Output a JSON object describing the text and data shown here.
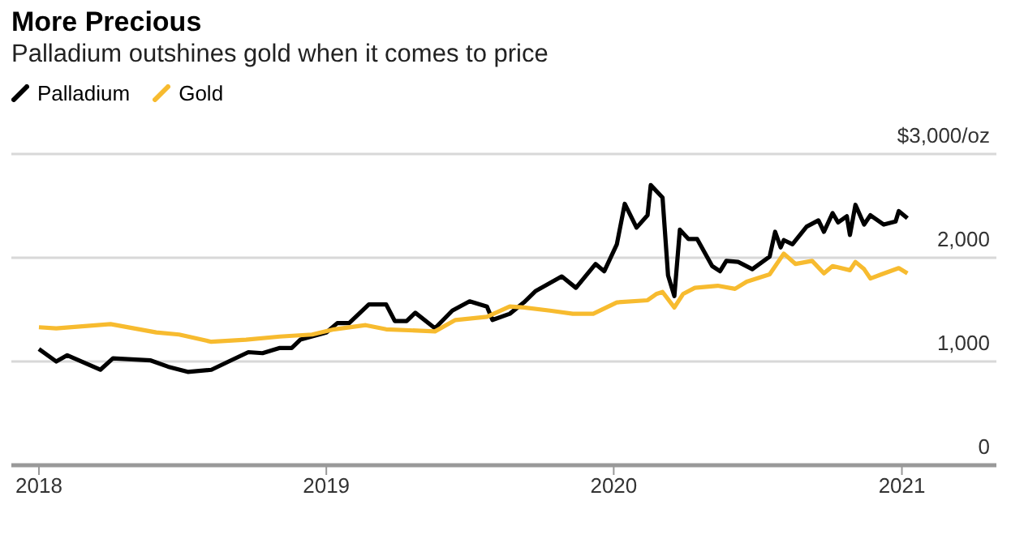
{
  "chart_data": {
    "type": "line",
    "title": "More Precious",
    "subtitle": "Palladium outshines gold when it comes to price",
    "xlim": [
      "2017-11-27",
      "2021-05-01"
    ],
    "xticks": [
      "2018",
      "2019",
      "2020",
      "2021"
    ],
    "ylim": [
      0,
      3000
    ],
    "yticks": [
      0,
      {
        "value": 1000,
        "label": "1,000"
      },
      {
        "value": 2000,
        "label": "2,000"
      },
      {
        "value": 3000,
        "label": "$3,000/oz"
      }
    ],
    "grid": "y",
    "legend": "top left",
    "line_style": "solid",
    "marker": "none",
    "series": [
      {
        "name": "Palladium",
        "color": "#000000",
        "x": [
          "2018-01-01",
          "2018-01-23",
          "2018-02-06",
          "2018-03-20",
          "2018-04-05",
          "2018-05-23",
          "2018-06-14",
          "2018-07-09",
          "2018-08-08",
          "2018-08-30",
          "2018-09-24",
          "2018-10-12",
          "2018-11-03",
          "2018-11-18",
          "2018-11-29",
          "2019-01-01",
          "2019-01-15",
          "2019-01-30",
          "2019-02-24",
          "2019-03-18",
          "2019-03-29",
          "2019-04-13",
          "2019-04-24",
          "2019-05-19",
          "2019-06-10",
          "2019-07-02",
          "2019-07-24",
          "2019-07-31",
          "2019-08-22",
          "2019-09-09",
          "2019-09-24",
          "2019-10-27",
          "2019-11-14",
          "2019-12-09",
          "2019-12-20",
          "2020-01-05",
          "2020-01-15",
          "2020-01-30",
          "2020-02-13",
          "2020-02-17",
          "2020-03-03",
          "2020-03-10",
          "2020-03-18",
          "2020-03-25",
          "2020-04-05",
          "2020-04-16",
          "2020-05-05",
          "2020-05-15",
          "2020-05-23",
          "2020-06-07",
          "2020-06-25",
          "2020-07-17",
          "2020-07-24",
          "2020-07-31",
          "2020-08-04",
          "2020-08-15",
          "2020-09-02",
          "2020-09-17",
          "2020-09-24",
          "2020-10-05",
          "2020-10-12",
          "2020-10-23",
          "2020-10-27",
          "2020-11-03",
          "2020-11-14",
          "2020-11-22",
          "2020-12-09",
          "2020-12-24",
          "2020-12-28",
          "2021-01-08"
        ],
        "values": [
          1120,
          1000,
          1060,
          920,
          1030,
          1010,
          950,
          900,
          920,
          1000,
          1090,
          1080,
          1130,
          1130,
          1210,
          1280,
          1370,
          1370,
          1550,
          1550,
          1390,
          1390,
          1470,
          1320,
          1490,
          1580,
          1530,
          1400,
          1460,
          1570,
          1680,
          1820,
          1710,
          1940,
          1870,
          2130,
          2520,
          2290,
          2410,
          2700,
          2580,
          1830,
          1630,
          2270,
          2180,
          2180,
          1920,
          1870,
          1970,
          1960,
          1890,
          2010,
          2250,
          2100,
          2170,
          2130,
          2300,
          2360,
          2250,
          2430,
          2340,
          2400,
          2220,
          2510,
          2320,
          2410,
          2320,
          2350,
          2450,
          2380
        ]
      },
      {
        "name": "Gold",
        "color": "#f7bb2f",
        "x": [
          "2018-01-01",
          "2018-01-23",
          "2018-04-02",
          "2018-05-30",
          "2018-06-28",
          "2018-08-08",
          "2018-09-21",
          "2018-11-03",
          "2018-12-14",
          "2019-01-11",
          "2019-02-20",
          "2019-03-18",
          "2019-05-19",
          "2019-06-14",
          "2019-07-24",
          "2019-08-22",
          "2019-09-09",
          "2019-10-12",
          "2019-11-10",
          "2019-12-06",
          "2020-01-05",
          "2020-02-13",
          "2020-02-24",
          "2020-03-03",
          "2020-03-18",
          "2020-03-29",
          "2020-04-13",
          "2020-05-12",
          "2020-06-03",
          "2020-06-18",
          "2020-07-17",
          "2020-08-04",
          "2020-08-19",
          "2020-09-09",
          "2020-09-24",
          "2020-10-05",
          "2020-10-27",
          "2020-11-03",
          "2020-11-14",
          "2020-11-22",
          "2020-12-06",
          "2020-12-28",
          "2021-01-08"
        ],
        "values": [
          1330,
          1320,
          1360,
          1280,
          1260,
          1190,
          1210,
          1240,
          1260,
          1310,
          1350,
          1310,
          1290,
          1400,
          1430,
          1530,
          1520,
          1490,
          1460,
          1460,
          1570,
          1590,
          1650,
          1670,
          1520,
          1650,
          1710,
          1730,
          1700,
          1770,
          1840,
          2040,
          1940,
          1970,
          1850,
          1920,
          1880,
          1960,
          1890,
          1800,
          1840,
          1900,
          1850
        ]
      }
    ]
  }
}
